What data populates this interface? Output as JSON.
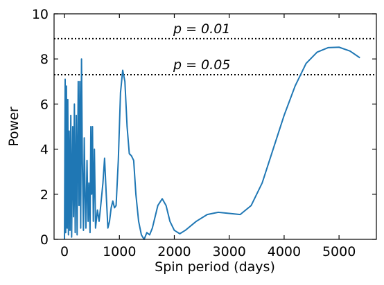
{
  "chart_data": {
    "type": "line",
    "x_label": "Spin period (days)",
    "y_label": "Power",
    "xlim": [
      -190,
      5680
    ],
    "ylim": [
      0,
      10
    ],
    "xticks": [
      0,
      1000,
      2000,
      3000,
      4000,
      5000
    ],
    "yticks": [
      0,
      2,
      4,
      6,
      8,
      10
    ],
    "reference_lines": [
      {
        "label": "p = 0.01",
        "value": 8.9
      },
      {
        "label": "p = 0.05",
        "value": 7.3
      }
    ],
    "series": [
      {
        "color": "#1f77b4",
        "x": [
          0,
          12,
          22,
          35,
          48,
          60,
          72,
          85,
          100,
          115,
          130,
          150,
          165,
          180,
          195,
          215,
          230,
          250,
          265,
          280,
          295,
          310,
          325,
          345,
          360,
          375,
          390,
          410,
          430,
          445,
          465,
          480,
          495,
          510,
          525,
          545,
          565,
          600,
          630,
          660,
          700,
          730,
          760,
          790,
          820,
          850,
          880,
          910,
          940,
          980,
          1020,
          1060,
          1100,
          1140,
          1180,
          1220,
          1260,
          1300,
          1350,
          1400,
          1450,
          1500,
          1550,
          1600,
          1650,
          1700,
          1780,
          1850,
          1920,
          2000,
          2100,
          2200,
          2400,
          2600,
          2800,
          3000,
          3200,
          3400,
          3600,
          3800,
          4000,
          4200,
          4400,
          4600,
          4800,
          5000,
          5200,
          5380
        ],
        "values": [
          0,
          7.1,
          0.3,
          6.8,
          0.5,
          6.2,
          0.2,
          4.8,
          0.4,
          5.5,
          0.1,
          5.0,
          1.0,
          6.0,
          0.3,
          5.5,
          0.2,
          7.0,
          1.5,
          7.0,
          0.5,
          8.0,
          3.5,
          0.4,
          4.5,
          2.0,
          0.5,
          3.5,
          0.8,
          2.5,
          0.3,
          5.0,
          2.0,
          5.0,
          0.8,
          4.0,
          0.5,
          1.3,
          0.8,
          1.5,
          2.5,
          3.6,
          2.0,
          0.5,
          0.8,
          1.4,
          1.7,
          1.4,
          1.5,
          3.5,
          6.5,
          7.5,
          7.0,
          5.0,
          3.8,
          3.7,
          3.5,
          2.0,
          0.8,
          0.2,
          0,
          0.3,
          0.2,
          0.5,
          1.0,
          1.5,
          1.8,
          1.5,
          0.8,
          0.4,
          0.25,
          0.4,
          0.8,
          1.1,
          1.2,
          1.15,
          1.1,
          1.5,
          2.5,
          4.0,
          5.5,
          6.8,
          7.8,
          8.3,
          8.5,
          8.52,
          8.35,
          8.05
        ]
      }
    ]
  }
}
